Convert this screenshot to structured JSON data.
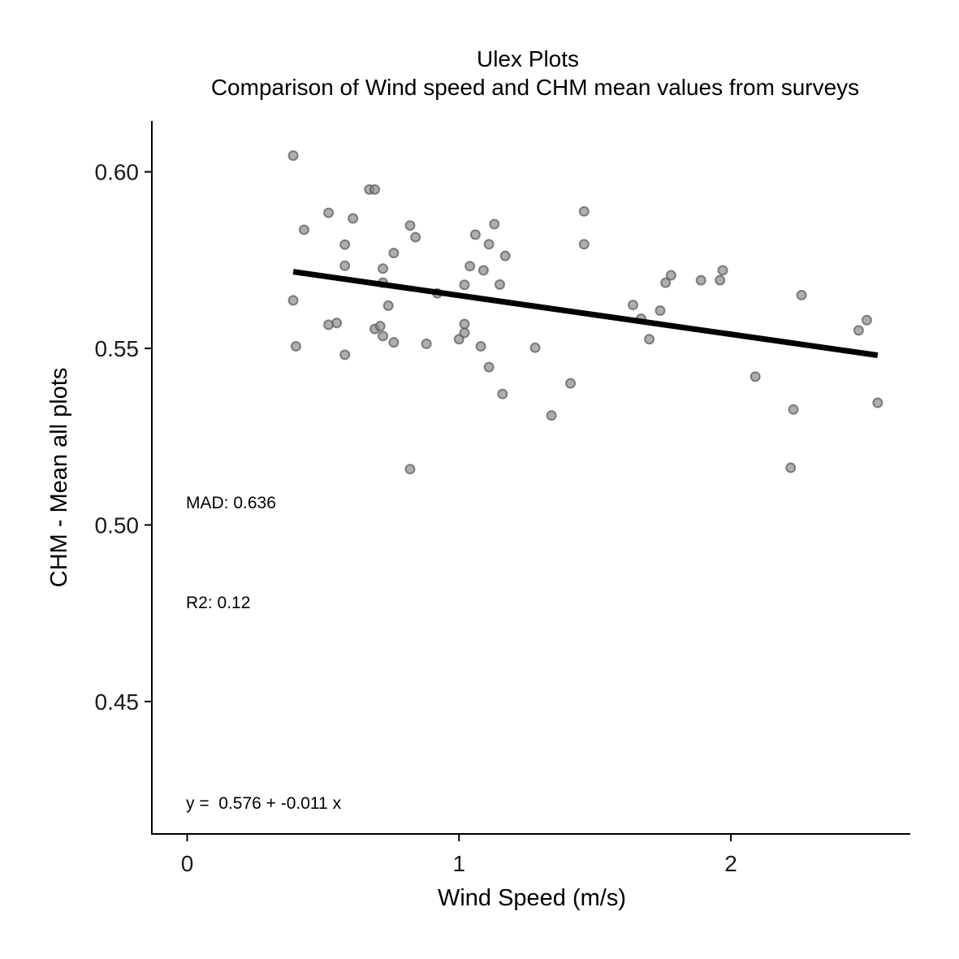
{
  "chart_data": {
    "type": "scatter",
    "title": "Ulex Plots",
    "subtitle": "Comparison of Wind speed and CHM mean values from surveys",
    "xlabel": "Wind Speed (m/s)",
    "ylabel": "CHM - Mean all plots",
    "xlim": [
      -0.13,
      2.66
    ],
    "ylim": [
      0.4125,
      0.6144
    ],
    "x_ticks": [
      0,
      1,
      2
    ],
    "x_tick_labels": [
      "0",
      "1",
      "2"
    ],
    "y_ticks": [
      0.45,
      0.5,
      0.55,
      0.6
    ],
    "y_tick_labels": [
      "0.45",
      "0.50",
      "0.55",
      "0.60"
    ],
    "grid": false,
    "legend": "none",
    "point_color": "#8c8c8c",
    "line_color": "#000000",
    "annotations": {
      "mad": "MAD: 0.636",
      "r2": "R2: 0.12",
      "equation": "y =  0.576 + -0.011 x"
    },
    "fit_line": {
      "intercept": 0.576,
      "slope": -0.011,
      "x_range": [
        0.39,
        2.54
      ]
    },
    "points": [
      {
        "x": 0.39,
        "y": 0.6046
      },
      {
        "x": 0.39,
        "y": 0.5636
      },
      {
        "x": 0.4,
        "y": 0.5506
      },
      {
        "x": 0.43,
        "y": 0.5836
      },
      {
        "x": 0.52,
        "y": 0.5884
      },
      {
        "x": 0.52,
        "y": 0.5567
      },
      {
        "x": 0.55,
        "y": 0.5572
      },
      {
        "x": 0.58,
        "y": 0.5794
      },
      {
        "x": 0.58,
        "y": 0.5734
      },
      {
        "x": 0.58,
        "y": 0.5482
      },
      {
        "x": 0.61,
        "y": 0.5868
      },
      {
        "x": 0.67,
        "y": 0.595
      },
      {
        "x": 0.69,
        "y": 0.595
      },
      {
        "x": 0.69,
        "y": 0.5555
      },
      {
        "x": 0.71,
        "y": 0.5563
      },
      {
        "x": 0.72,
        "y": 0.5726
      },
      {
        "x": 0.72,
        "y": 0.5686
      },
      {
        "x": 0.72,
        "y": 0.5535
      },
      {
        "x": 0.74,
        "y": 0.5621
      },
      {
        "x": 0.76,
        "y": 0.577
      },
      {
        "x": 0.76,
        "y": 0.5517
      },
      {
        "x": 0.82,
        "y": 0.5848
      },
      {
        "x": 0.82,
        "y": 0.5158
      },
      {
        "x": 0.84,
        "y": 0.5815
      },
      {
        "x": 0.88,
        "y": 0.5513
      },
      {
        "x": 0.92,
        "y": 0.5656
      },
      {
        "x": 1.0,
        "y": 0.5526
      },
      {
        "x": 1.02,
        "y": 0.568
      },
      {
        "x": 1.02,
        "y": 0.5569
      },
      {
        "x": 1.02,
        "y": 0.5544
      },
      {
        "x": 1.04,
        "y": 0.5733
      },
      {
        "x": 1.06,
        "y": 0.5822
      },
      {
        "x": 1.08,
        "y": 0.5506
      },
      {
        "x": 1.09,
        "y": 0.5721
      },
      {
        "x": 1.11,
        "y": 0.5795
      },
      {
        "x": 1.11,
        "y": 0.5447
      },
      {
        "x": 1.13,
        "y": 0.5852
      },
      {
        "x": 1.15,
        "y": 0.5681
      },
      {
        "x": 1.16,
        "y": 0.5371
      },
      {
        "x": 1.17,
        "y": 0.5762
      },
      {
        "x": 1.28,
        "y": 0.5502
      },
      {
        "x": 1.34,
        "y": 0.531
      },
      {
        "x": 1.41,
        "y": 0.5401
      },
      {
        "x": 1.46,
        "y": 0.5888
      },
      {
        "x": 1.46,
        "y": 0.5795
      },
      {
        "x": 1.64,
        "y": 0.5623
      },
      {
        "x": 1.67,
        "y": 0.5584
      },
      {
        "x": 1.7,
        "y": 0.5526
      },
      {
        "x": 1.74,
        "y": 0.5607
      },
      {
        "x": 1.76,
        "y": 0.5686
      },
      {
        "x": 1.78,
        "y": 0.5707
      },
      {
        "x": 1.89,
        "y": 0.5693
      },
      {
        "x": 1.96,
        "y": 0.5693
      },
      {
        "x": 1.97,
        "y": 0.5721
      },
      {
        "x": 2.09,
        "y": 0.542
      },
      {
        "x": 2.22,
        "y": 0.5162
      },
      {
        "x": 2.23,
        "y": 0.5327
      },
      {
        "x": 2.26,
        "y": 0.5651
      },
      {
        "x": 2.47,
        "y": 0.5551
      },
      {
        "x": 2.5,
        "y": 0.558
      },
      {
        "x": 2.54,
        "y": 0.5346
      }
    ]
  }
}
